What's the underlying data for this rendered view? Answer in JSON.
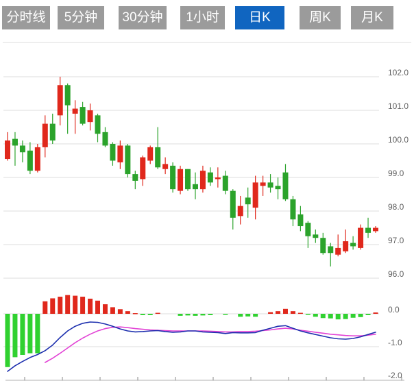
{
  "tabs": [
    {
      "label": "分时线",
      "active": false
    },
    {
      "label": "5分钟",
      "active": false
    },
    {
      "label": "30分钟",
      "active": false
    },
    {
      "label": "1小时",
      "active": false
    },
    {
      "label": "日K",
      "active": true
    },
    {
      "label": "周K",
      "active": false
    },
    {
      "label": "月K",
      "active": false
    }
  ],
  "colors": {
    "tab_gray": "#9b9b9b",
    "tab_active_blue": "#1065c0",
    "up_red": "#e0281c",
    "down_green": "#2ba32b",
    "macd_bar_green": "#30d130",
    "macd_bar_red": "#e0281c",
    "dif_blue": "#1c2fae",
    "dea_magenta": "#e243d5",
    "grid": "#dcdcdc",
    "axis": "#b0b0b0",
    "label": "#606060"
  },
  "chart_data": {
    "type": "candlestick",
    "title": "",
    "legend_position": "none",
    "grid": true,
    "panels": [
      {
        "name": "price",
        "y_ticks": [
          102.0,
          101.0,
          100.0,
          99.0,
          98.0,
          97.0,
          96.0
        ],
        "ylim": [
          95.7,
          103.0
        ]
      },
      {
        "name": "macd",
        "y_ticks": [
          0.0,
          -1.0,
          -2.0
        ],
        "ylim": [
          0.75,
          -2.0
        ]
      }
    ],
    "candles_ohlc": [
      [
        99.55,
        100.35,
        99.5,
        100.1
      ],
      [
        100.15,
        100.35,
        99.35,
        99.95
      ],
      [
        99.95,
        100.1,
        99.45,
        99.75
      ],
      [
        99.8,
        100.05,
        99.1,
        99.2
      ],
      [
        99.2,
        100.0,
        99.15,
        99.9
      ],
      [
        99.9,
        100.85,
        99.6,
        100.6
      ],
      [
        100.6,
        100.9,
        100.0,
        100.1
      ],
      [
        100.85,
        102.0,
        100.55,
        101.75
      ],
      [
        101.75,
        101.8,
        100.3,
        101.15
      ],
      [
        100.9,
        101.3,
        100.3,
        101.05
      ],
      [
        101.1,
        101.25,
        100.55,
        100.6
      ],
      [
        100.65,
        101.2,
        100.4,
        101.0
      ],
      [
        100.85,
        100.9,
        100.05,
        100.3
      ],
      [
        100.35,
        100.5,
        99.9,
        99.95
      ],
      [
        100.0,
        100.05,
        99.35,
        99.5
      ],
      [
        99.45,
        100.1,
        99.25,
        99.95
      ],
      [
        99.95,
        100.0,
        99.0,
        99.1
      ],
      [
        99.1,
        99.2,
        98.65,
        98.9
      ],
      [
        98.95,
        99.65,
        98.75,
        99.6
      ],
      [
        99.5,
        99.95,
        99.4,
        99.9
      ],
      [
        99.9,
        100.5,
        99.25,
        99.3
      ],
      [
        99.25,
        99.6,
        99.1,
        99.4
      ],
      [
        99.35,
        99.45,
        98.55,
        98.65
      ],
      [
        98.6,
        99.35,
        98.5,
        99.25
      ],
      [
        99.25,
        99.25,
        98.6,
        98.65
      ],
      [
        98.8,
        99.15,
        98.35,
        98.65
      ],
      [
        98.65,
        99.35,
        98.55,
        99.2
      ],
      [
        99.15,
        99.3,
        98.75,
        98.85
      ],
      [
        98.95,
        99.3,
        98.7,
        99.0
      ],
      [
        99.05,
        99.2,
        98.5,
        98.6
      ],
      [
        98.6,
        98.65,
        97.45,
        97.8
      ],
      [
        97.85,
        98.45,
        97.6,
        98.15
      ],
      [
        98.4,
        98.7,
        97.8,
        98.2
      ],
      [
        98.1,
        99.05,
        97.75,
        98.85
      ],
      [
        98.75,
        99.05,
        98.45,
        98.85
      ],
      [
        98.85,
        99.1,
        98.55,
        98.7
      ],
      [
        98.75,
        99.0,
        98.35,
        98.65
      ],
      [
        99.15,
        99.4,
        98.3,
        98.35
      ],
      [
        98.35,
        98.45,
        97.55,
        97.75
      ],
      [
        97.9,
        98.15,
        97.4,
        97.55
      ],
      [
        97.65,
        97.7,
        96.9,
        97.25
      ],
      [
        97.3,
        97.45,
        97.05,
        97.2
      ],
      [
        97.2,
        97.35,
        96.7,
        96.75
      ],
      [
        96.95,
        97.05,
        96.35,
        96.75
      ],
      [
        96.7,
        97.3,
        96.65,
        96.9
      ],
      [
        96.8,
        97.45,
        96.75,
        97.1
      ],
      [
        97.05,
        97.25,
        96.85,
        96.95
      ],
      [
        96.9,
        97.6,
        96.85,
        97.5
      ],
      [
        97.5,
        97.8,
        97.2,
        97.35
      ],
      [
        97.4,
        97.55,
        97.35,
        97.5
      ]
    ],
    "macd": {
      "histogram": [
        -1.62,
        -1.32,
        -1.25,
        -1.2,
        -1.2,
        0.38,
        0.47,
        0.52,
        0.57,
        0.55,
        0.52,
        0.46,
        0.4,
        0.29,
        0.2,
        0.14,
        0.08,
        0.02,
        -0.04,
        -0.04,
        0.03,
        0,
        0,
        -0.06,
        -0.05,
        -0.06,
        -0.05,
        -0.04,
        0,
        -0.02,
        0,
        -0.09,
        -0.08,
        -0.09,
        0,
        0.05,
        0.08,
        0.15,
        0.08,
        0.03,
        -0.03,
        -0.09,
        -0.13,
        -0.14,
        -0.17,
        -0.16,
        -0.12,
        -0.1,
        -0.04,
        0.04
      ],
      "dif": [
        -1.75,
        -1.58,
        -1.45,
        -1.33,
        -1.24,
        -1.12,
        -0.95,
        -0.72,
        -0.52,
        -0.38,
        -0.29,
        -0.25,
        -0.26,
        -0.31,
        -0.38,
        -0.46,
        -0.52,
        -0.55,
        -0.54,
        -0.52,
        -0.51,
        -0.54,
        -0.56,
        -0.55,
        -0.52,
        -0.52,
        -0.55,
        -0.56,
        -0.57,
        -0.6,
        -0.57,
        -0.58,
        -0.58,
        -0.57,
        -0.5,
        -0.44,
        -0.38,
        -0.36,
        -0.44,
        -0.52,
        -0.58,
        -0.63,
        -0.68,
        -0.73,
        -0.76,
        -0.77,
        -0.75,
        -0.7,
        -0.63,
        -0.56
      ],
      "dea": [
        null,
        null,
        null,
        null,
        null,
        -1.48,
        -1.35,
        -1.2,
        -1.04,
        -0.88,
        -0.74,
        -0.62,
        -0.52,
        -0.45,
        -0.41,
        -0.4,
        -0.42,
        -0.45,
        -0.47,
        -0.49,
        -0.5,
        -0.51,
        -0.52,
        -0.52,
        -0.52,
        -0.52,
        -0.52,
        -0.53,
        -0.54,
        -0.55,
        -0.55,
        -0.54,
        -0.54,
        -0.53,
        -0.51,
        -0.49,
        -0.46,
        -0.44,
        -0.46,
        -0.5,
        -0.53,
        -0.56,
        -0.59,
        -0.62,
        -0.64,
        -0.66,
        -0.67,
        -0.67,
        -0.65,
        -0.62
      ]
    }
  }
}
